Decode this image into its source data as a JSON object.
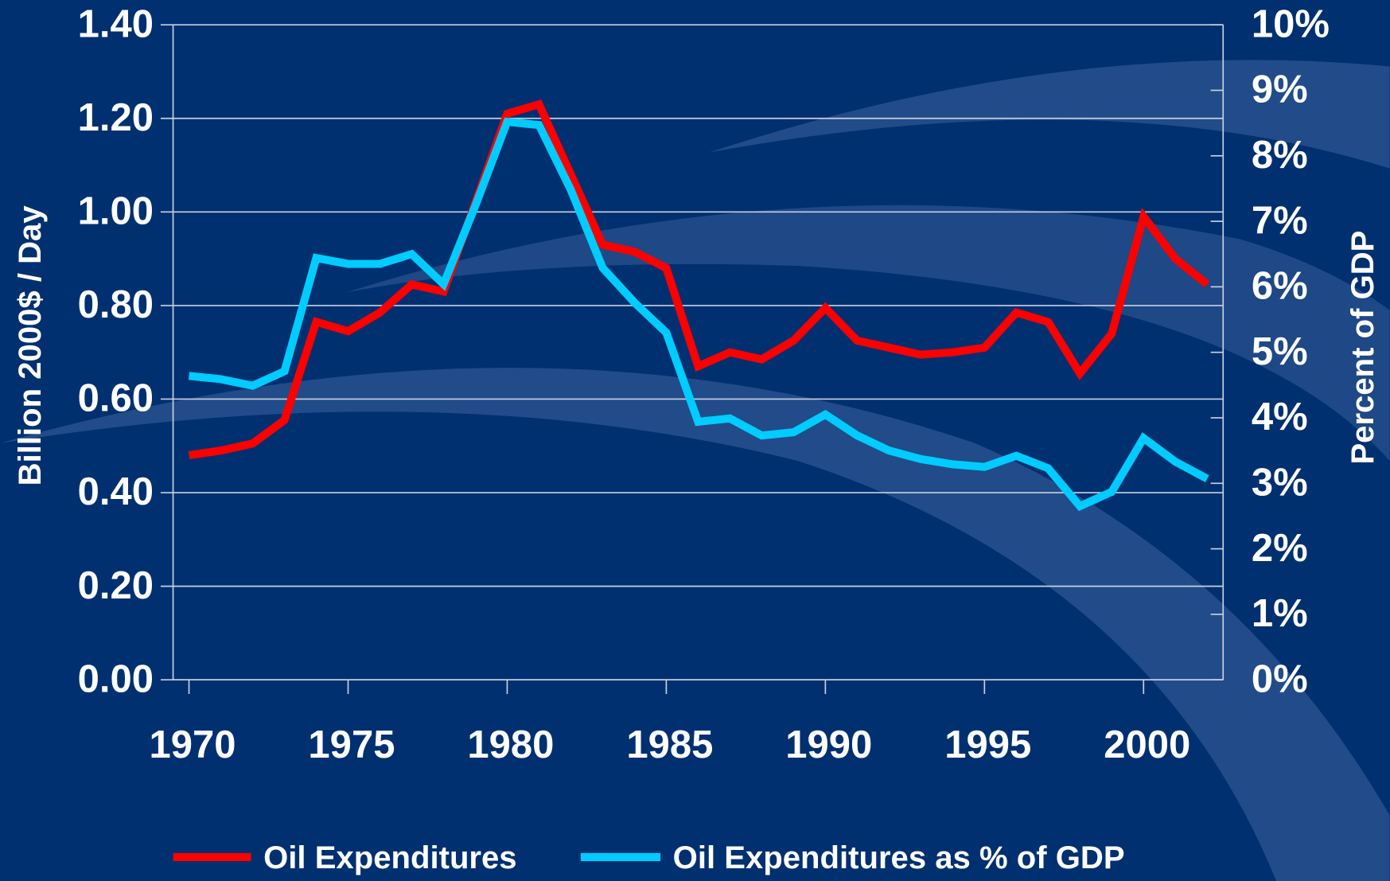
{
  "chart_data": {
    "type": "line",
    "y_label": "Billion 2000$ / Day",
    "y2_label": "Percent of GDP",
    "x": [
      1970,
      1971,
      1972,
      1973,
      1974,
      1975,
      1976,
      1977,
      1978,
      1979,
      1980,
      1981,
      1982,
      1983,
      1984,
      1985,
      1986,
      1987,
      1988,
      1989,
      1990,
      1991,
      1992,
      1993,
      1994,
      1995,
      1996,
      1997,
      1998,
      1999,
      2000,
      2001,
      2002
    ],
    "xlim": [
      1969.5,
      2002.5
    ],
    "xticks": [
      1970,
      1975,
      1980,
      1985,
      1990,
      1995,
      2000
    ],
    "ylim": [
      0,
      1.4
    ],
    "yticks": [
      {
        "value": 0,
        "label": "0.00"
      },
      {
        "value": 0.2,
        "label": "0.20"
      },
      {
        "value": 0.4,
        "label": "0.40"
      },
      {
        "value": 0.6,
        "label": "0.60"
      },
      {
        "value": 0.8,
        "label": "0.80"
      },
      {
        "value": 1.0,
        "label": "1.00"
      },
      {
        "value": 1.2,
        "label": "1.20"
      },
      {
        "value": 1.4,
        "label": "1.40"
      }
    ],
    "y2lim": [
      0,
      10
    ],
    "y2ticks": [
      {
        "value": 0,
        "label": "0%"
      },
      {
        "value": 1,
        "label": "1%"
      },
      {
        "value": 2,
        "label": "2%"
      },
      {
        "value": 3,
        "label": "3%"
      },
      {
        "value": 4,
        "label": "4%"
      },
      {
        "value": 5,
        "label": "5%"
      },
      {
        "value": 6,
        "label": "6%"
      },
      {
        "value": 7,
        "label": "7%"
      },
      {
        "value": 8,
        "label": "8%"
      },
      {
        "value": 9,
        "label": "9%"
      },
      {
        "value": 10,
        "label": "10%"
      }
    ],
    "grid": true,
    "legend": "bottom",
    "series": [
      {
        "name": "Oil Expenditures",
        "color": "#ff0000",
        "values": [
          0.48,
          0.49,
          0.505,
          0.555,
          0.765,
          0.745,
          0.785,
          0.845,
          0.83,
          1.02,
          1.21,
          1.23,
          1.08,
          0.93,
          0.915,
          0.88,
          0.67,
          0.7,
          0.685,
          0.725,
          0.795,
          0.725,
          0.71,
          0.695,
          0.7,
          0.71,
          0.785,
          0.765,
          0.655,
          0.74,
          0.99,
          0.9,
          0.845
        ]
      },
      {
        "name": "Oil Expenditures as % of GDP",
        "color": "#00ccff",
        "axis": "y2",
        "values": [
          4.64,
          4.59,
          4.49,
          4.71,
          6.44,
          6.35,
          6.35,
          6.5,
          6.04,
          7.24,
          8.52,
          8.47,
          7.48,
          6.29,
          5.76,
          5.3,
          3.94,
          3.99,
          3.73,
          3.78,
          4.05,
          3.73,
          3.5,
          3.37,
          3.29,
          3.25,
          3.42,
          3.23,
          2.65,
          2.87,
          3.69,
          3.33,
          3.07
        ]
      }
    ]
  }
}
